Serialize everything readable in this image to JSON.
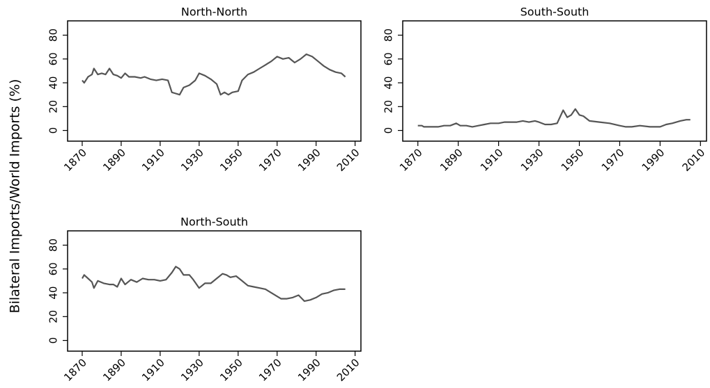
{
  "ylabel": "Bilateral Imports/World Imports (%)",
  "chart_data": [
    {
      "type": "line",
      "title": "North-North",
      "color": "#555555",
      "x": [
        1870,
        1871,
        1873,
        1875,
        1876,
        1878,
        1880,
        1882,
        1884,
        1886,
        1888,
        1890,
        1892,
        1894,
        1897,
        1900,
        1902,
        1905,
        1908,
        1911,
        1914,
        1916,
        1918,
        1920,
        1922,
        1925,
        1928,
        1930,
        1933,
        1936,
        1939,
        1941,
        1943,
        1945,
        1947,
        1950,
        1952,
        1955,
        1958,
        1961,
        1964,
        1967,
        1970,
        1973,
        1976,
        1979,
        1982,
        1985,
        1988,
        1991,
        1994,
        1997,
        2000,
        2003,
        2005
      ],
      "values": [
        42,
        40,
        45,
        47,
        52,
        47,
        48,
        47,
        52,
        47,
        46,
        44,
        48,
        45,
        45,
        44,
        45,
        43,
        42,
        43,
        42,
        32,
        31,
        30,
        36,
        38,
        42,
        48,
        46,
        43,
        39,
        30,
        32,
        30,
        32,
        33,
        42,
        47,
        49,
        52,
        55,
        58,
        62,
        60,
        61,
        57,
        60,
        64,
        62,
        58,
        54,
        51,
        49,
        48,
        45
      ],
      "xlim": [
        1862.5,
        2013
      ],
      "xticks": [
        1870,
        1890,
        1910,
        1930,
        1950,
        1970,
        1990,
        2010
      ],
      "ylim": [
        -9,
        92
      ],
      "yticks": [
        0,
        20,
        40,
        60,
        80
      ]
    },
    {
      "type": "line",
      "title": "South-South",
      "color": "#555555",
      "x": [
        1870,
        1872,
        1873,
        1876,
        1880,
        1883,
        1886,
        1889,
        1891,
        1894,
        1897,
        1900,
        1903,
        1906,
        1910,
        1913,
        1916,
        1919,
        1922,
        1925,
        1928,
        1930,
        1933,
        1936,
        1939,
        1942,
        1944,
        1946,
        1948,
        1950,
        1952,
        1955,
        1960,
        1965,
        1970,
        1973,
        1976,
        1980,
        1985,
        1990,
        1993,
        1996,
        2000,
        2003,
        2005
      ],
      "values": [
        4,
        4,
        3,
        3,
        3,
        4,
        4,
        6,
        4,
        4,
        3,
        4,
        5,
        6,
        6,
        7,
        7,
        7,
        8,
        7,
        8,
        7,
        5,
        5,
        6,
        17,
        11,
        13,
        18,
        13,
        12,
        8,
        7,
        6,
        4,
        3,
        3,
        4,
        3,
        3,
        5,
        6,
        8,
        9,
        9
      ],
      "xlim": [
        1862.5,
        2013
      ],
      "xticks": [
        1870,
        1890,
        1910,
        1930,
        1950,
        1970,
        1990,
        2010
      ],
      "ylim": [
        -9,
        92
      ],
      "yticks": [
        0,
        20,
        40,
        60,
        80
      ]
    },
    {
      "type": "line",
      "title": "North-South",
      "color": "#555555",
      "x": [
        1870,
        1871,
        1873,
        1875,
        1876,
        1878,
        1881,
        1884,
        1886,
        1888,
        1890,
        1892,
        1895,
        1898,
        1901,
        1904,
        1907,
        1910,
        1913,
        1916,
        1918,
        1920,
        1922,
        1925,
        1927,
        1930,
        1933,
        1936,
        1939,
        1942,
        1944,
        1946,
        1949,
        1952,
        1955,
        1958,
        1961,
        1964,
        1967,
        1970,
        1972,
        1975,
        1978,
        1981,
        1984,
        1987,
        1990,
        1993,
        1996,
        1999,
        2002,
        2005
      ],
      "values": [
        52,
        55,
        52,
        49,
        44,
        50,
        48,
        47,
        47,
        45,
        52,
        47,
        51,
        49,
        52,
        51,
        51,
        50,
        51,
        57,
        62,
        60,
        55,
        55,
        51,
        44,
        48,
        48,
        52,
        56,
        55,
        53,
        54,
        50,
        46,
        45,
        44,
        43,
        40,
        37,
        35,
        35,
        36,
        38,
        33,
        34,
        36,
        39,
        40,
        42,
        43,
        43
      ],
      "xlim": [
        1862.5,
        2013
      ],
      "xticks": [
        1870,
        1890,
        1910,
        1930,
        1950,
        1970,
        1990,
        2010
      ],
      "ylim": [
        -9,
        92
      ],
      "yticks": [
        0,
        20,
        40,
        60,
        80
      ]
    }
  ]
}
